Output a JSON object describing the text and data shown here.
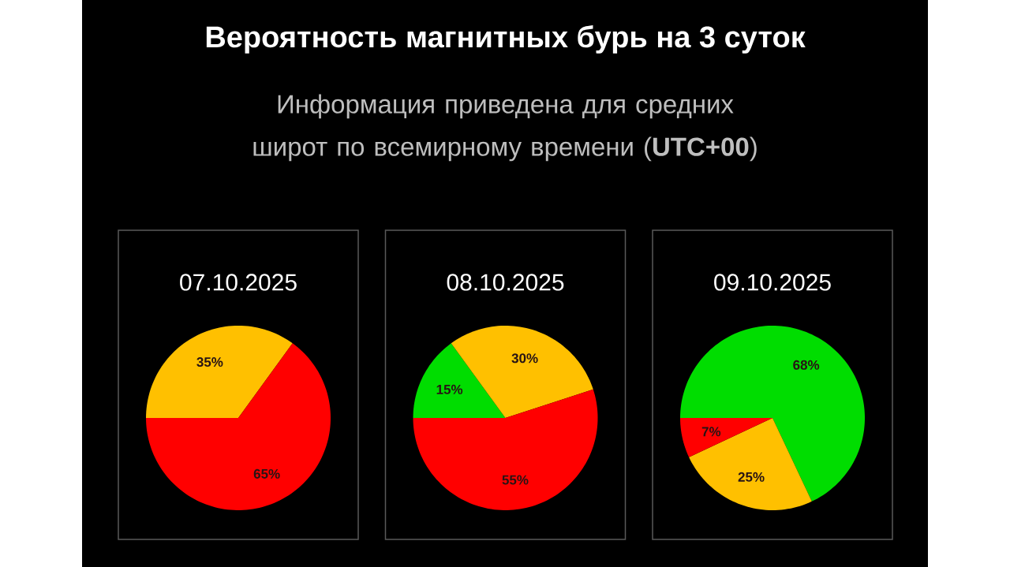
{
  "chart_data": [
    {
      "type": "other",
      "title": "Вероятность магнитных бурь на 3 суток",
      "subtitle": "Информация приведена для средних широт по всемирному времени (**UTC+00**)"
    },
    {
      "type": "pie",
      "title": "07.10.2025",
      "categories": [
        null,
        null
      ],
      "values": [
        35,
        65
      ],
      "colors": [
        "#ffc000",
        "#ff0000"
      ],
      "value_labels": [
        "35%",
        "65%"
      ]
    },
    {
      "type": "pie",
      "title": "08.10.2025",
      "categories": [
        null,
        null,
        null
      ],
      "values": [
        15,
        30,
        55
      ],
      "colors": [
        "#00dd00",
        "#ffc000",
        "#ff0000"
      ],
      "value_labels": [
        "15%",
        "30%",
        "55%"
      ]
    },
    {
      "type": "pie",
      "title": "09.10.2025",
      "categories": [
        null,
        null,
        null
      ],
      "values": [
        68,
        25,
        7
      ],
      "colors": [
        "#00dd00",
        "#ffc000",
        "#ff0000"
      ],
      "value_labels": [
        "68%",
        "25%",
        "7%"
      ]
    }
  ]
}
